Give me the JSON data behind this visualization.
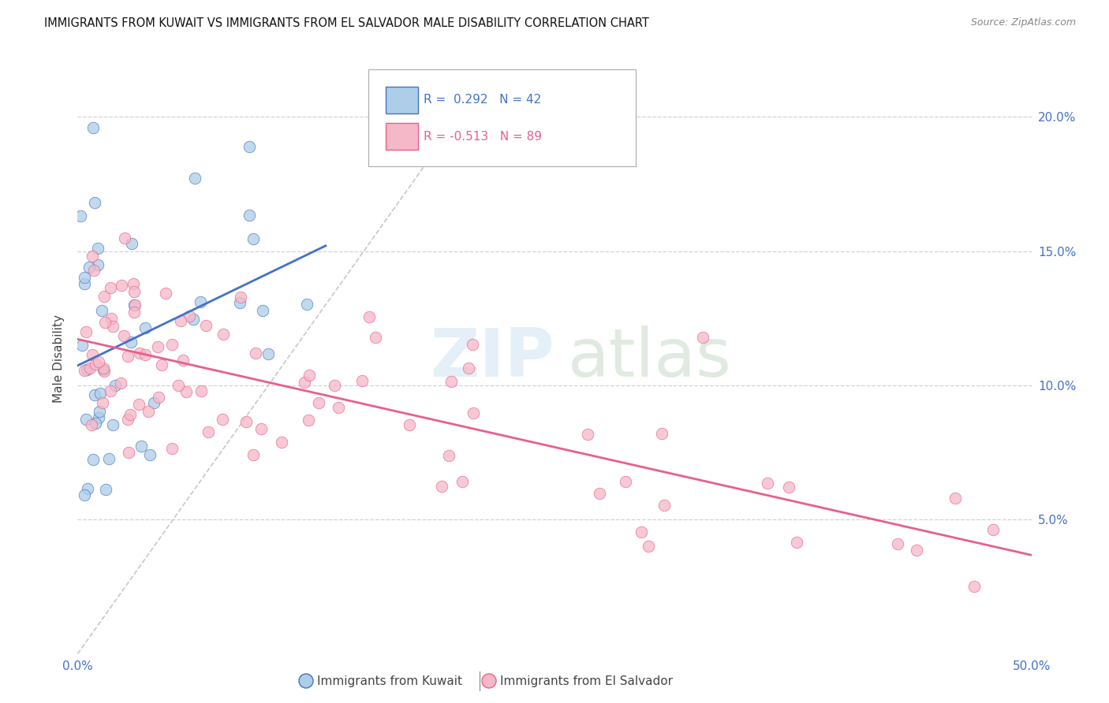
{
  "title": "IMMIGRANTS FROM KUWAIT VS IMMIGRANTS FROM EL SALVADOR MALE DISABILITY CORRELATION CHART",
  "source": "Source: ZipAtlas.com",
  "ylabel": "Male Disability",
  "xlim": [
    0.0,
    0.5
  ],
  "ylim": [
    0.0,
    0.22
  ],
  "yticks": [
    0.05,
    0.1,
    0.15,
    0.2
  ],
  "ytick_labels": [
    "5.0%",
    "10.0%",
    "15.0%",
    "20.0%"
  ],
  "xticks": [
    0.0,
    0.1,
    0.2,
    0.3,
    0.4,
    0.5
  ],
  "xtick_labels": [
    "0.0%",
    "",
    "",
    "",
    "",
    "50.0%"
  ],
  "color_kuwait": "#aecde8",
  "color_elsalvador": "#f5b8c8",
  "color_kuwait_line": "#4472c4",
  "color_elsalvador_line": "#e8608a",
  "color_diagonal": "#b0b0b0",
  "tick_color": "#4472c4",
  "grid_color": "#d0d0e0",
  "watermark_zip_color": "#d8e8f5",
  "watermark_atlas_color": "#c8dfc8"
}
